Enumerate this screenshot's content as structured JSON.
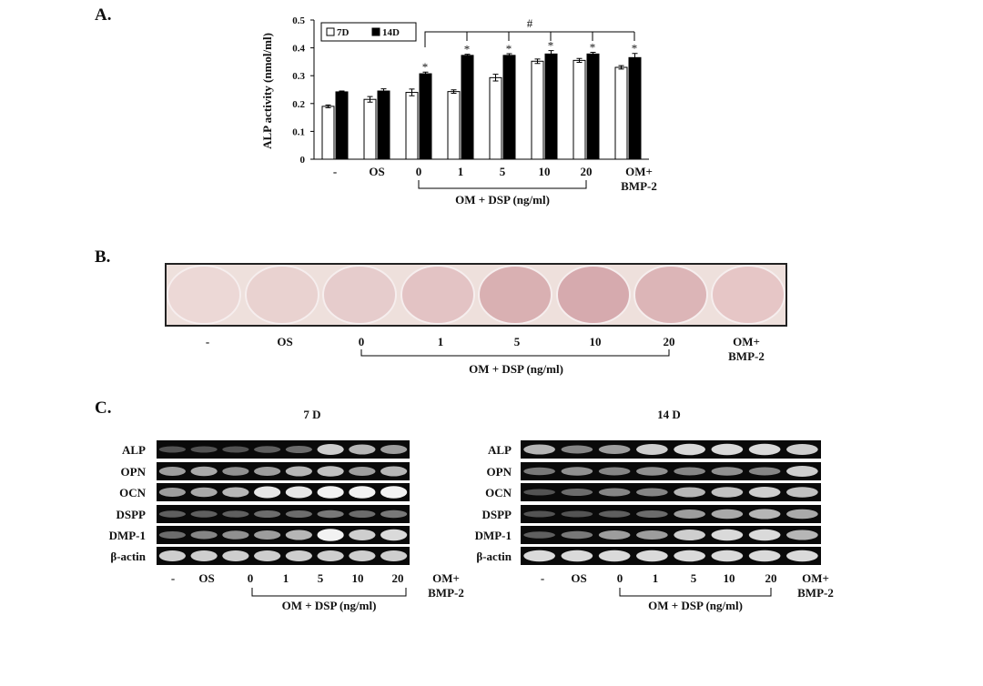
{
  "chart_data": {
    "type": "bar",
    "panel_label": "A.",
    "categories": [
      "-",
      "OS",
      "0",
      "1",
      "5",
      "10",
      "20",
      "OM+ BMP-2"
    ],
    "series": [
      {
        "name": "7D",
        "color": "#ffffff",
        "values": [
          0.19,
          0.215,
          0.24,
          0.243,
          0.293,
          0.352,
          0.355,
          0.33
        ],
        "errors": [
          0.005,
          0.01,
          0.012,
          0.006,
          0.012,
          0.008,
          0.007,
          0.006
        ]
      },
      {
        "name": "14D",
        "color": "#000000",
        "values": [
          0.242,
          0.245,
          0.307,
          0.373,
          0.373,
          0.378,
          0.378,
          0.365
        ],
        "errors": [
          0.003,
          0.008,
          0.006,
          0.004,
          0.006,
          0.012,
          0.006,
          0.015
        ]
      }
    ],
    "ylim": [
      0,
      0.5
    ],
    "yticks": [
      0,
      0.1,
      0.2,
      0.3,
      0.4,
      0.5
    ],
    "ylabel": "ALP  activity (nmol/ml)",
    "legend": "upper left",
    "stars": {
      "text": "*",
      "categories": [
        "0",
        "1",
        "5",
        "10",
        "20",
        "OM+ BMP-2"
      ]
    },
    "bracket_label": "#",
    "group_label": "OM + DSP (ng/ml)"
  },
  "panel_b": {
    "label": "B.",
    "lanes": [
      "-",
      "OS",
      "0",
      "1",
      "5",
      "10",
      "20",
      "OM+ BMP-2"
    ],
    "group_label": "OM + DSP (ng/ml)"
  },
  "panel_c": {
    "label": "C.",
    "gels": [
      {
        "title": "7 D",
        "genes": [
          "ALP",
          "OPN",
          "OCN",
          "DSPP",
          "DMP-1",
          "β-actin"
        ]
      },
      {
        "title": "14 D",
        "genes": [
          "ALP",
          "OPN",
          "OCN",
          "DSPP",
          "DMP-1",
          "β-actin"
        ]
      }
    ],
    "lanes": [
      "-",
      "OS",
      "0",
      "1",
      "5",
      "10",
      "20",
      "OM+ BMP-2"
    ],
    "group_label": "OM + DSP (ng/ml)"
  }
}
